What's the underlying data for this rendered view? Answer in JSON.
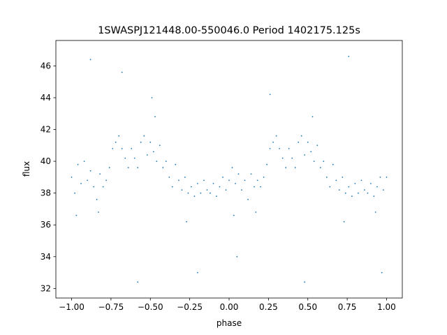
{
  "chart_data": {
    "type": "scatter",
    "title": "1SWASPJ121448.00-550046.0 Period 1402175.125s",
    "xlabel": "phase",
    "ylabel": "flux",
    "xlim": [
      -1.1,
      1.1
    ],
    "ylim": [
      31.4,
      47.6
    ],
    "xticks": [
      -1.0,
      -0.75,
      -0.5,
      -0.25,
      0.0,
      0.25,
      0.5,
      0.75,
      1.0
    ],
    "xtick_labels": [
      "−1.00",
      "−0.75",
      "−0.50",
      "−0.25",
      "0.00",
      "0.25",
      "0.50",
      "0.75",
      "1.00"
    ],
    "yticks": [
      32,
      34,
      36,
      38,
      40,
      42,
      44,
      46
    ],
    "ytick_labels": [
      "32",
      "34",
      "36",
      "38",
      "40",
      "42",
      "44",
      "46"
    ],
    "grid": false,
    "point_color": "#1f77b4",
    "points": [
      [
        -1.0,
        39.0
      ],
      [
        -0.98,
        38.0
      ],
      [
        -0.96,
        39.8
      ],
      [
        -0.94,
        38.6
      ],
      [
        -0.92,
        40.0
      ],
      [
        -0.9,
        38.8
      ],
      [
        -0.88,
        39.4
      ],
      [
        -0.86,
        38.4
      ],
      [
        -0.84,
        37.6
      ],
      [
        -0.82,
        39.2
      ],
      [
        -0.8,
        38.4
      ],
      [
        -0.78,
        38.8
      ],
      [
        -0.76,
        39.6
      ],
      [
        -0.74,
        40.8
      ],
      [
        -0.72,
        41.2
      ],
      [
        -0.7,
        41.6
      ],
      [
        -0.68,
        40.8
      ],
      [
        -0.66,
        40.2
      ],
      [
        -0.64,
        39.6
      ],
      [
        -0.62,
        40.8
      ],
      [
        -0.6,
        40.2
      ],
      [
        -0.58,
        39.6
      ],
      [
        -0.56,
        41.2
      ],
      [
        -0.54,
        41.6
      ],
      [
        -0.52,
        40.4
      ],
      [
        -0.5,
        41.2
      ],
      [
        -0.48,
        40.6
      ],
      [
        -0.46,
        40.0
      ],
      [
        -0.44,
        41.0
      ],
      [
        -0.42,
        39.6
      ],
      [
        -0.4,
        40.0
      ],
      [
        -0.38,
        39.0
      ],
      [
        -0.36,
        38.4
      ],
      [
        -0.34,
        39.8
      ],
      [
        -0.32,
        38.8
      ],
      [
        -0.3,
        38.2
      ],
      [
        -0.28,
        39.0
      ],
      [
        -0.26,
        38.0
      ],
      [
        -0.24,
        38.4
      ],
      [
        -0.22,
        37.8
      ],
      [
        -0.2,
        38.6
      ],
      [
        -0.18,
        38.0
      ],
      [
        -0.16,
        38.8
      ],
      [
        -0.14,
        38.2
      ],
      [
        -0.12,
        38.0
      ],
      [
        -0.1,
        38.6
      ],
      [
        -0.08,
        37.8
      ],
      [
        -0.06,
        38.4
      ],
      [
        -0.04,
        39.0
      ],
      [
        -0.02,
        38.2
      ],
      [
        0.0,
        38.8
      ],
      [
        0.02,
        39.6
      ],
      [
        0.04,
        38.6
      ],
      [
        0.06,
        39.2
      ],
      [
        0.08,
        38.2
      ],
      [
        0.1,
        38.8
      ],
      [
        0.12,
        37.6
      ],
      [
        0.14,
        39.2
      ],
      [
        0.16,
        38.4
      ],
      [
        0.18,
        38.8
      ],
      [
        0.2,
        38.4
      ],
      [
        0.22,
        39.0
      ],
      [
        0.24,
        39.8
      ],
      [
        0.26,
        40.8
      ],
      [
        0.28,
        41.2
      ],
      [
        0.3,
        41.6
      ],
      [
        0.32,
        40.8
      ],
      [
        0.34,
        40.2
      ],
      [
        0.36,
        39.6
      ],
      [
        0.38,
        40.8
      ],
      [
        0.4,
        40.2
      ],
      [
        0.42,
        39.6
      ],
      [
        0.44,
        41.2
      ],
      [
        0.46,
        41.6
      ],
      [
        0.48,
        40.4
      ],
      [
        0.5,
        41.2
      ],
      [
        0.52,
        40.6
      ],
      [
        0.54,
        40.0
      ],
      [
        0.56,
        41.0
      ],
      [
        0.58,
        39.6
      ],
      [
        0.6,
        40.0
      ],
      [
        0.62,
        39.0
      ],
      [
        0.64,
        38.4
      ],
      [
        0.66,
        39.8
      ],
      [
        0.68,
        38.8
      ],
      [
        0.7,
        38.2
      ],
      [
        0.72,
        39.0
      ],
      [
        0.74,
        38.0
      ],
      [
        0.76,
        38.4
      ],
      [
        0.78,
        37.8
      ],
      [
        0.8,
        38.6
      ],
      [
        0.82,
        38.0
      ],
      [
        0.84,
        38.8
      ],
      [
        0.86,
        38.2
      ],
      [
        0.88,
        38.0
      ],
      [
        0.9,
        38.6
      ],
      [
        0.92,
        37.8
      ],
      [
        0.94,
        38.4
      ],
      [
        0.96,
        39.0
      ],
      [
        0.98,
        38.2
      ],
      [
        1.0,
        39.0
      ],
      [
        -0.97,
        36.6
      ],
      [
        -0.83,
        36.8
      ],
      [
        -0.47,
        42.8
      ],
      [
        -0.27,
        36.2
      ],
      [
        0.03,
        36.6
      ],
      [
        0.17,
        36.8
      ],
      [
        0.53,
        42.8
      ],
      [
        0.73,
        36.2
      ],
      [
        0.93,
        36.8
      ],
      [
        -0.88,
        46.4
      ],
      [
        -0.49,
        44.0
      ],
      [
        -0.2,
        33.0
      ],
      [
        0.05,
        34.0
      ],
      [
        0.48,
        32.4
      ],
      [
        0.76,
        46.6
      ],
      [
        0.97,
        33.0
      ],
      [
        -0.58,
        32.4
      ],
      [
        0.26,
        44.2
      ],
      [
        -0.68,
        45.6
      ]
    ]
  }
}
